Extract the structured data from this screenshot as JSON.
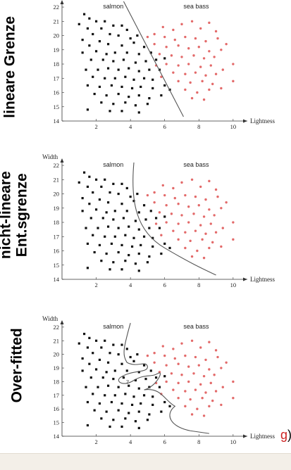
{
  "panels": [
    {
      "side_label": [
        "lineare Grenze"
      ],
      "width_label": "",
      "class_labels": {
        "left": "salmon",
        "right": "sea bass"
      },
      "xlabel": "Lightness",
      "boundary": "linear"
    },
    {
      "side_label": [
        "nicht-lineare",
        "Ent.sgrenze"
      ],
      "width_label": "Width",
      "class_labels": {
        "left": "salmon",
        "right": "sea bass"
      },
      "xlabel": "Lightness",
      "boundary": "curved"
    },
    {
      "side_label": [
        "Over-fitted"
      ],
      "width_label": "Width",
      "class_labels": {
        "left": "salmon",
        "right": "sea bass"
      },
      "xlabel": "Lightness",
      "boundary": "overfit",
      "query_mark": "?"
    }
  ],
  "fragment": {
    "red": "g",
    "black": ")"
  },
  "colors": {
    "salmon": "#111111",
    "sea_bass": "#e36a6a",
    "boundary": "#555555"
  },
  "chart_data": {
    "type": "scatter",
    "x_ticks": [
      "2",
      "4",
      "6",
      "8",
      "10"
    ],
    "y_ticks": [
      "14",
      "15",
      "16",
      "17",
      "18",
      "19",
      "20",
      "21",
      "22"
    ],
    "xlim": [
      0,
      10.5
    ],
    "ylim": [
      14,
      22.2
    ],
    "series": [
      {
        "name": "salmon",
        "points": [
          [
            1.3,
            21.5
          ],
          [
            1.6,
            21.2
          ],
          [
            1.0,
            20.8
          ],
          [
            2.0,
            21.0
          ],
          [
            2.5,
            21.0
          ],
          [
            1.5,
            20.5
          ],
          [
            2.3,
            20.5
          ],
          [
            3.0,
            20.7
          ],
          [
            3.5,
            20.7
          ],
          [
            3.8,
            20.4
          ],
          [
            1.2,
            19.7
          ],
          [
            1.8,
            20.1
          ],
          [
            2.8,
            20.1
          ],
          [
            3.3,
            20.0
          ],
          [
            4.0,
            19.8
          ],
          [
            4.4,
            20.0
          ],
          [
            1.6,
            19.3
          ],
          [
            2.2,
            19.6
          ],
          [
            2.7,
            19.4
          ],
          [
            3.5,
            19.3
          ],
          [
            4.2,
            19.5
          ],
          [
            4.8,
            19.2
          ],
          [
            1.2,
            18.8
          ],
          [
            2.0,
            18.9
          ],
          [
            2.6,
            18.7
          ],
          [
            3.1,
            18.8
          ],
          [
            3.8,
            18.8
          ],
          [
            4.5,
            18.7
          ],
          [
            5.2,
            18.8
          ],
          [
            1.7,
            18.3
          ],
          [
            2.4,
            18.3
          ],
          [
            3.0,
            18.2
          ],
          [
            3.6,
            18.3
          ],
          [
            4.3,
            18.1
          ],
          [
            4.9,
            18.2
          ],
          [
            5.5,
            18.3
          ],
          [
            1.4,
            17.6
          ],
          [
            2.1,
            17.6
          ],
          [
            2.7,
            17.7
          ],
          [
            3.3,
            17.6
          ],
          [
            3.9,
            17.7
          ],
          [
            4.5,
            17.5
          ],
          [
            5.1,
            17.6
          ],
          [
            5.7,
            17.6
          ],
          [
            1.8,
            17.1
          ],
          [
            2.5,
            17.0
          ],
          [
            3.1,
            17.0
          ],
          [
            3.7,
            17.1
          ],
          [
            4.2,
            16.9
          ],
          [
            4.8,
            17.0
          ],
          [
            5.3,
            16.9
          ],
          [
            1.5,
            16.5
          ],
          [
            2.2,
            16.4
          ],
          [
            2.9,
            16.5
          ],
          [
            3.5,
            16.4
          ],
          [
            4.1,
            16.3
          ],
          [
            4.6,
            16.4
          ],
          [
            5.3,
            16.3
          ],
          [
            6.0,
            16.5
          ],
          [
            1.9,
            15.9
          ],
          [
            2.6,
            15.8
          ],
          [
            3.3,
            15.9
          ],
          [
            3.9,
            15.7
          ],
          [
            4.5,
            15.8
          ],
          [
            5.1,
            15.6
          ],
          [
            5.8,
            15.8
          ],
          [
            6.3,
            16.2
          ],
          [
            2.3,
            15.3
          ],
          [
            3.0,
            15.2
          ],
          [
            3.7,
            15.3
          ],
          [
            4.3,
            15.1
          ],
          [
            5.0,
            15.2
          ],
          [
            1.5,
            14.8
          ],
          [
            2.8,
            14.7
          ],
          [
            3.5,
            14.7
          ],
          [
            4.5,
            14.6
          ],
          [
            6.0,
            18.4
          ]
        ]
      },
      {
        "name": "sea bass",
        "points": [
          [
            5.0,
            19.9
          ],
          [
            5.4,
            20.1
          ],
          [
            5.9,
            20.6
          ],
          [
            6.5,
            20.4
          ],
          [
            7.0,
            20.8
          ],
          [
            7.6,
            21.0
          ],
          [
            8.1,
            20.5
          ],
          [
            8.6,
            20.9
          ],
          [
            9.0,
            20.3
          ],
          [
            6.0,
            19.9
          ],
          [
            6.6,
            19.7
          ],
          [
            7.2,
            19.9
          ],
          [
            7.8,
            19.8
          ],
          [
            8.4,
            19.6
          ],
          [
            9.1,
            19.8
          ],
          [
            9.6,
            19.4
          ],
          [
            5.4,
            19.4
          ],
          [
            6.1,
            19.2
          ],
          [
            6.8,
            19.3
          ],
          [
            7.4,
            19.1
          ],
          [
            8.0,
            19.2
          ],
          [
            8.6,
            18.9
          ],
          [
            9.3,
            19.0
          ],
          [
            5.7,
            18.7
          ],
          [
            6.4,
            18.6
          ],
          [
            7.0,
            18.5
          ],
          [
            7.7,
            18.6
          ],
          [
            8.3,
            18.4
          ],
          [
            8.9,
            18.5
          ],
          [
            6.1,
            18.0
          ],
          [
            6.8,
            17.9
          ],
          [
            7.4,
            18.0
          ],
          [
            8.1,
            17.8
          ],
          [
            8.7,
            17.9
          ],
          [
            9.4,
            17.6
          ],
          [
            6.5,
            17.4
          ],
          [
            7.2,
            17.3
          ],
          [
            7.8,
            17.4
          ],
          [
            8.4,
            17.2
          ],
          [
            9.0,
            17.3
          ],
          [
            6.8,
            16.8
          ],
          [
            7.5,
            16.7
          ],
          [
            8.2,
            16.8
          ],
          [
            8.8,
            16.6
          ],
          [
            7.2,
            16.2
          ],
          [
            7.9,
            16.0
          ],
          [
            8.6,
            16.2
          ],
          [
            9.3,
            16.3
          ],
          [
            7.6,
            15.6
          ],
          [
            8.3,
            15.5
          ],
          [
            10.0,
            18.0
          ],
          [
            10.0,
            16.8
          ],
          [
            5.8,
            17.1
          ],
          [
            5.5,
            17.9
          ]
        ]
      }
    ]
  }
}
